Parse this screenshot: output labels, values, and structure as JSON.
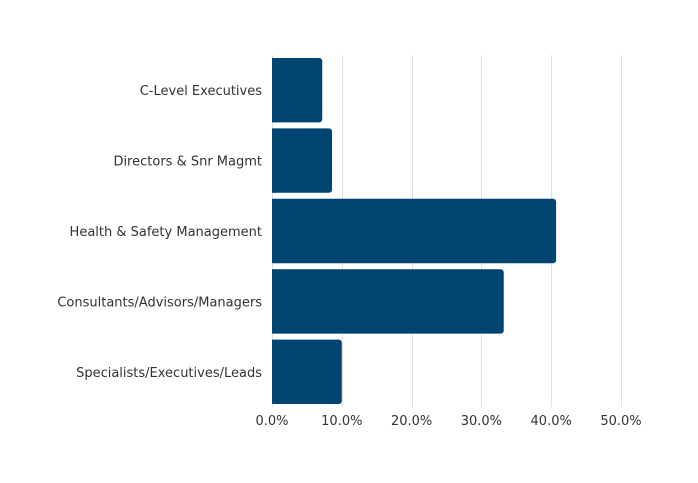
{
  "chart_data": {
    "type": "bar",
    "orientation": "horizontal",
    "title": "",
    "xlabel": "",
    "ylabel": "",
    "categories": [
      "C-Level Executives",
      "Directors & Snr Magmt",
      "Health & Safety Management",
      "Consultants/Advisors/Managers",
      "Specialists/Executives/Leads"
    ],
    "values": [
      7.2,
      8.6,
      40.7,
      33.2,
      10.0
    ],
    "value_unit": "%",
    "xlim": [
      0,
      50
    ],
    "x_ticks": [
      0,
      10,
      20,
      30,
      40,
      50
    ],
    "x_tick_labels": [
      "0.0%",
      "10.0%",
      "20.0%",
      "30.0%",
      "40.0%",
      "50.0%"
    ],
    "grid": "vertical",
    "legend": "none",
    "bar_color": "#004472",
    "grid_color": "#e0e0e0"
  }
}
